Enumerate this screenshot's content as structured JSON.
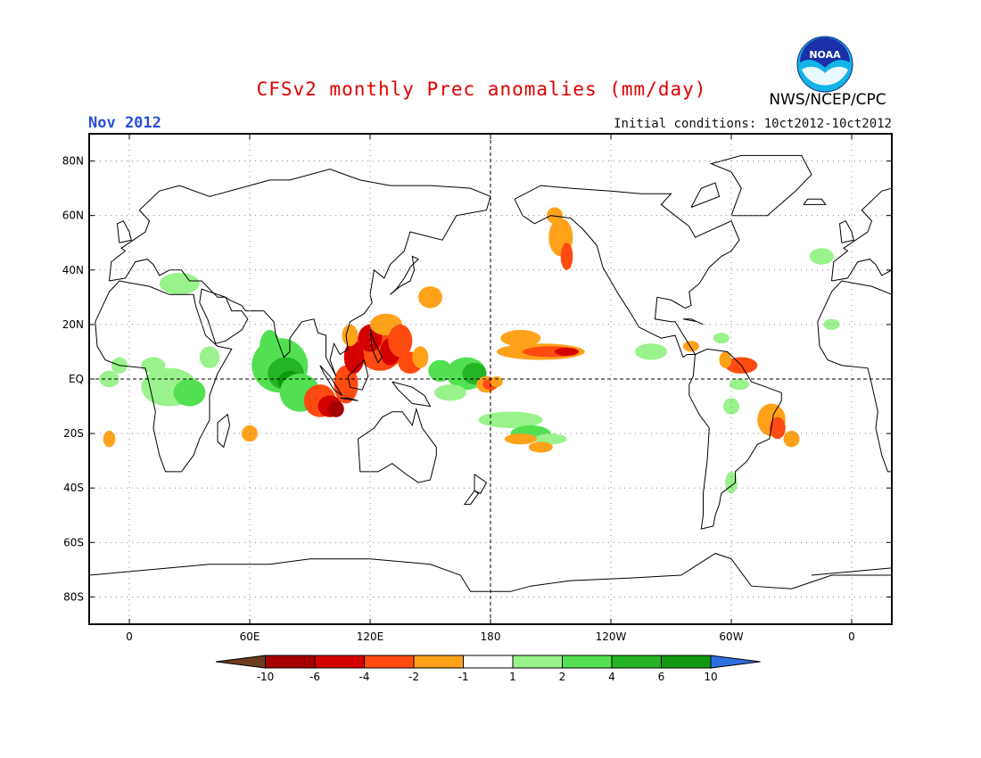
{
  "header": {
    "title": "CFSv2 monthly Prec anomalies (mm/day)",
    "month": "Nov 2012",
    "initial_conditions": "Initial conditions: 10ct2012-10ct2012",
    "agency": "NWS/NCEP/CPC",
    "logo_text": "NOAA"
  },
  "colors": {
    "title": "#e00000",
    "month": "#2a4ed8",
    "frame": "#000000",
    "coast": "#000000",
    "grid": "#888888"
  },
  "map": {
    "lat_labels": [
      "80N",
      "60N",
      "40N",
      "20N",
      "EQ",
      "20S",
      "40S",
      "60S",
      "80S"
    ],
    "lat_values": [
      80,
      60,
      40,
      20,
      0,
      -20,
      -40,
      -60,
      -80
    ],
    "lon_labels": [
      "0",
      "60E",
      "120E",
      "180",
      "120W",
      "60W",
      "0"
    ],
    "lon_values": [
      0,
      60,
      120,
      180,
      240,
      300,
      360
    ],
    "lon_range": [
      -20,
      380
    ],
    "lat_range": [
      -90,
      90
    ]
  },
  "colorbar": {
    "labels": [
      "-10",
      "-6",
      "-4",
      "-2",
      "-1",
      "1",
      "2",
      "4",
      "6",
      "10"
    ],
    "colors": [
      "#6e3b1f",
      "#a50000",
      "#d40000",
      "#ff4a10",
      "#ffa21a",
      "#ffffff",
      "#9af28c",
      "#52e052",
      "#24b424",
      "#0f9a0f",
      "#2f6ee0"
    ]
  }
}
